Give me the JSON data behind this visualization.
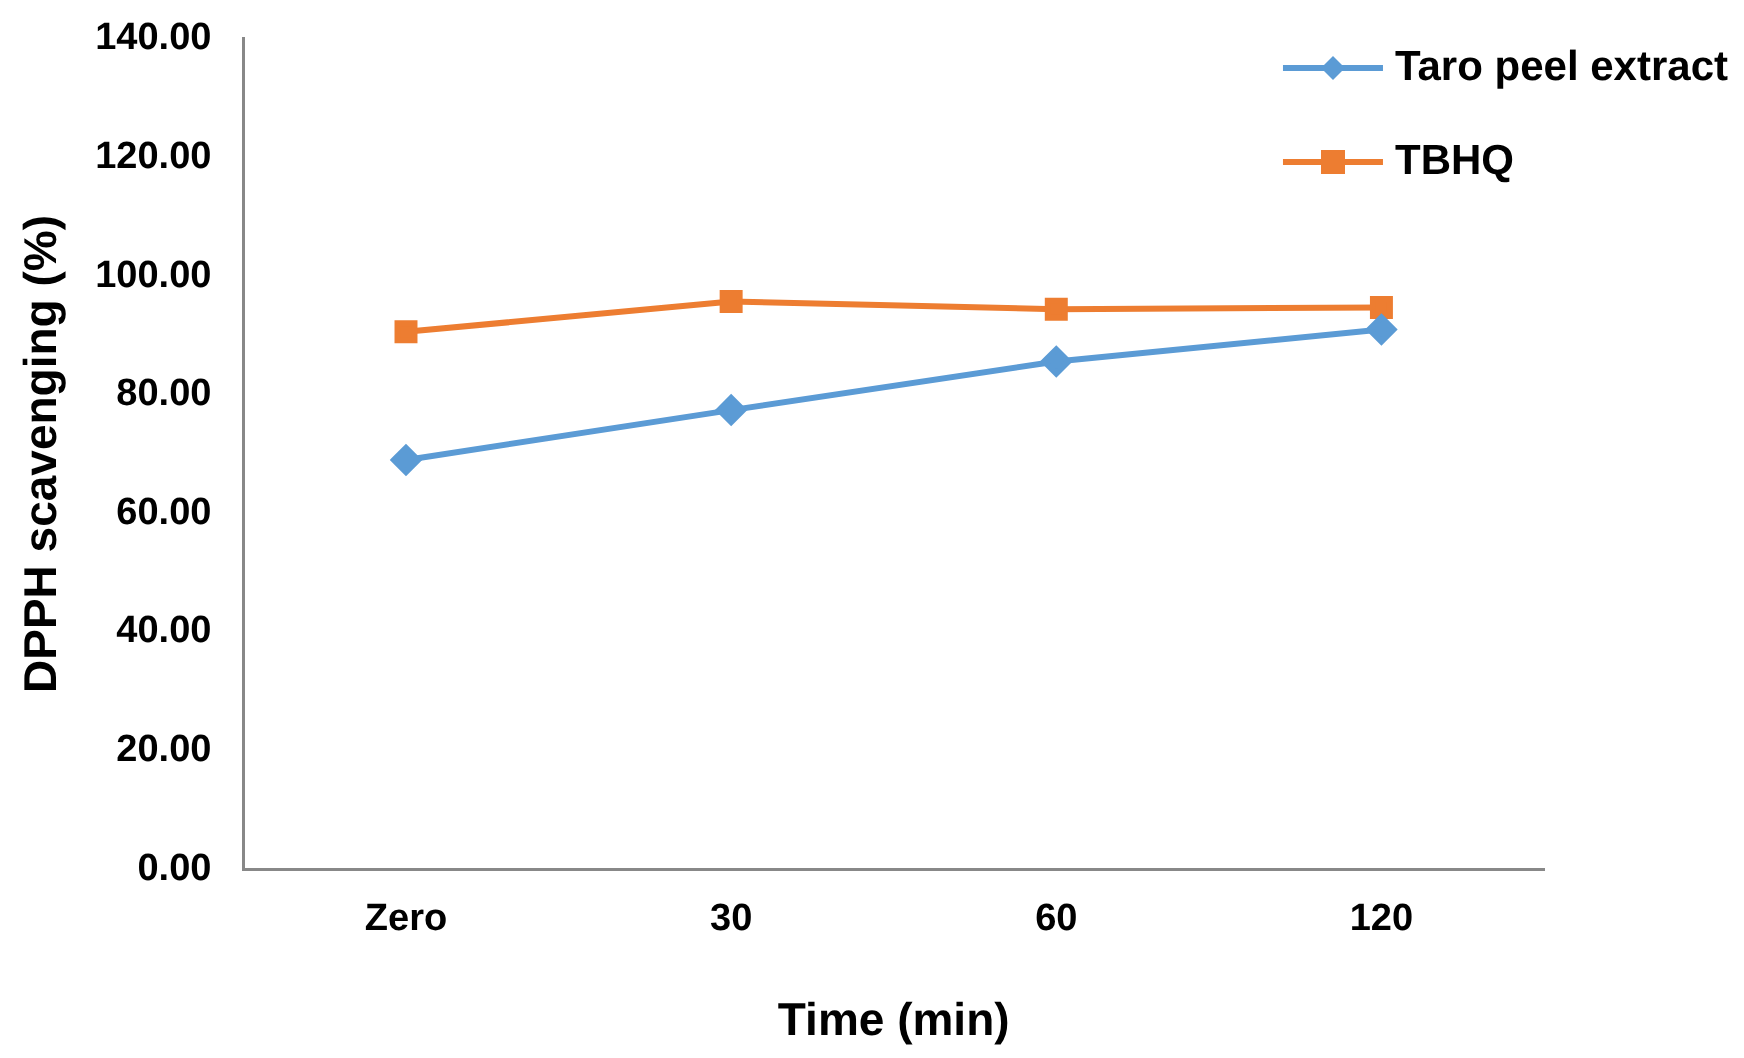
{
  "chart_data": {
    "type": "line",
    "xlabel": "Time (min)",
    "ylabel": "DPPH scavenging (%)",
    "categories": [
      "Zero",
      "30",
      "60",
      "120"
    ],
    "series": [
      {
        "name": "Taro peel extract",
        "color": "#5b9bd5",
        "marker": "diamond",
        "values": [
          69.0,
          77.4,
          85.6,
          91.0
        ]
      },
      {
        "name": "TBHQ",
        "color": "#ed7d31",
        "marker": "square",
        "values": [
          90.6,
          95.7,
          94.4,
          94.7
        ]
      }
    ],
    "ylim": [
      0,
      140
    ],
    "yticks": [
      {
        "value": 0,
        "label": "0.00"
      },
      {
        "value": 20,
        "label": "20.00"
      },
      {
        "value": 40,
        "label": "40.00"
      },
      {
        "value": 60,
        "label": "60.00"
      },
      {
        "value": 80,
        "label": "80.00"
      },
      {
        "value": 100,
        "label": "100.00"
      },
      {
        "value": 120,
        "label": "120.00"
      },
      {
        "value": 140,
        "label": "140.00"
      }
    ],
    "grid": false,
    "legend": "top right",
    "line_style": "solid"
  }
}
